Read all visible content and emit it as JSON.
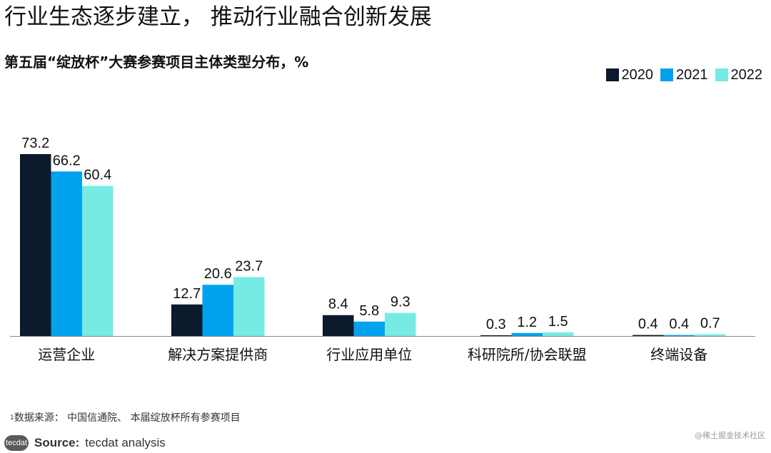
{
  "page": {
    "title": "行业生态逐步建立， 推动行业融合创新发展"
  },
  "chart_data": {
    "type": "bar",
    "title": "第五届“绽放杯”大赛参赛项目主体类型分布，%",
    "categories": [
      "运营企业",
      "解决方案提供商",
      "行业应用单位",
      "科研院所/协会联盟",
      "终端设备"
    ],
    "series": [
      {
        "name": "2020",
        "color": "#0b1a2c",
        "values": [
          73.2,
          12.7,
          8.4,
          0.3,
          0.4
        ]
      },
      {
        "name": "2021",
        "color": "#00a2ee",
        "values": [
          66.2,
          20.6,
          5.8,
          1.2,
          0.4
        ]
      },
      {
        "name": "2022",
        "color": "#76ebe3",
        "values": [
          60.4,
          23.7,
          9.3,
          1.5,
          0.7
        ]
      }
    ],
    "data_labels": [
      [
        "73.2",
        "12.7",
        "8.4",
        "0.3",
        "0.4"
      ],
      [
        "66.2",
        "20.6",
        "5.8",
        "1.2",
        "0.4"
      ],
      [
        "60.4",
        "23.7",
        "9.3",
        "1.5",
        "0.7"
      ]
    ],
    "ylim": [
      0,
      73.2
    ],
    "grid": false,
    "legend_position": "top-right",
    "xlabel": "",
    "ylabel": ""
  },
  "footnote": {
    "marker": "1",
    "text": "数据来源： 中国信通院、 本届绽放杯所有参赛项目"
  },
  "source": {
    "logo_text": "tecdat",
    "label": "Source:",
    "text": "tecdat analysis"
  },
  "watermark": {
    "text": "@稀土掘金技术社区"
  },
  "colors": {
    "axis": "#888888",
    "text": "#111111"
  }
}
